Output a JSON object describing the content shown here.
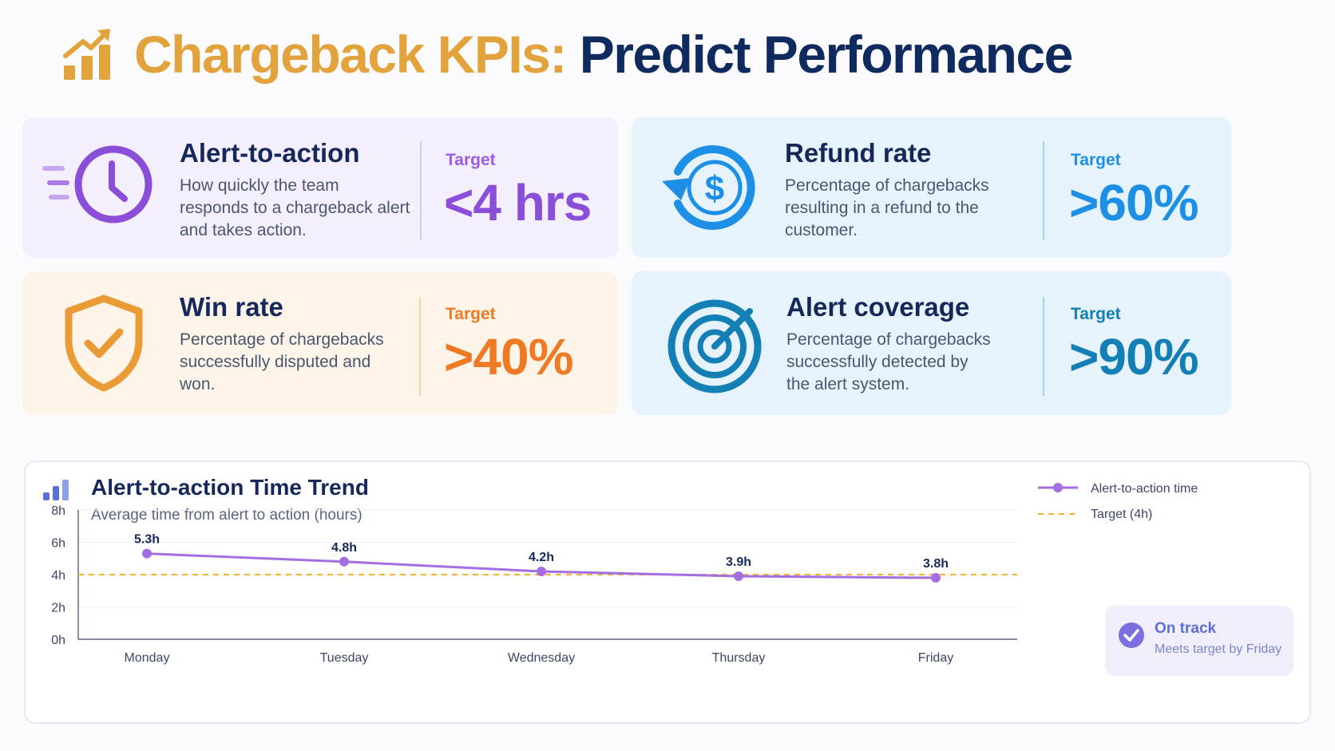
{
  "header": {
    "title_accent": "Chargeback KPIs:",
    "title_main": "Predict Performance"
  },
  "colors": {
    "accent_gold": "#e2a33c",
    "navy": "#0f2a5f",
    "purple": "#8b4ed8",
    "blue": "#1e8fe6",
    "orange": "#ee7a24",
    "teal": "#137fb4"
  },
  "kpis": [
    {
      "icon": "clock-icon",
      "title": "Alert-to-action",
      "description": "How quickly the team responds to a chargeback alert and takes action.",
      "target_label": "Target",
      "target_value": "<4 hrs"
    },
    {
      "icon": "refund-dollar-icon",
      "title": "Refund rate",
      "description": "Percentage of chargebacks resulting in a refund to the customer.",
      "target_label": "Target",
      "target_value": ">60%"
    },
    {
      "icon": "shield-check-icon",
      "title": "Win rate",
      "description": "Percentage of chargebacks successfully disputed and won.",
      "target_label": "Target",
      "target_value": ">40%"
    },
    {
      "icon": "target-icon",
      "title": "Alert coverage",
      "description": "Percentage of chargebacks successfully detected by the alert system.",
      "target_label": "Target",
      "target_value": ">90%"
    }
  ],
  "chart_data": {
    "type": "line",
    "title": "Alert-to-action Time Trend",
    "subtitle": "Average time from alert to action (hours)",
    "categories": [
      "Monday",
      "Tuesday",
      "Wednesday",
      "Thursday",
      "Friday"
    ],
    "series": [
      {
        "name": "Alert-to-action time",
        "values": [
          5.3,
          4.8,
          4.2,
          3.9,
          3.8
        ],
        "labels": [
          "5.3h",
          "4.8h",
          "4.2h",
          "3.9h",
          "3.8h"
        ],
        "color": "#a56de2"
      }
    ],
    "target": {
      "name": "Target (4h)",
      "value": 4,
      "color": "#f2b233"
    },
    "ylim": [
      0,
      8
    ],
    "yticks": [
      0,
      2,
      4,
      6,
      8
    ],
    "ytick_labels": [
      "0h",
      "2h",
      "4h",
      "6h",
      "8h"
    ],
    "grid": true,
    "legend_position": "top-right"
  },
  "status": {
    "icon": "check-circle-icon",
    "title": "On track",
    "subtitle": "Meets target by Friday"
  }
}
